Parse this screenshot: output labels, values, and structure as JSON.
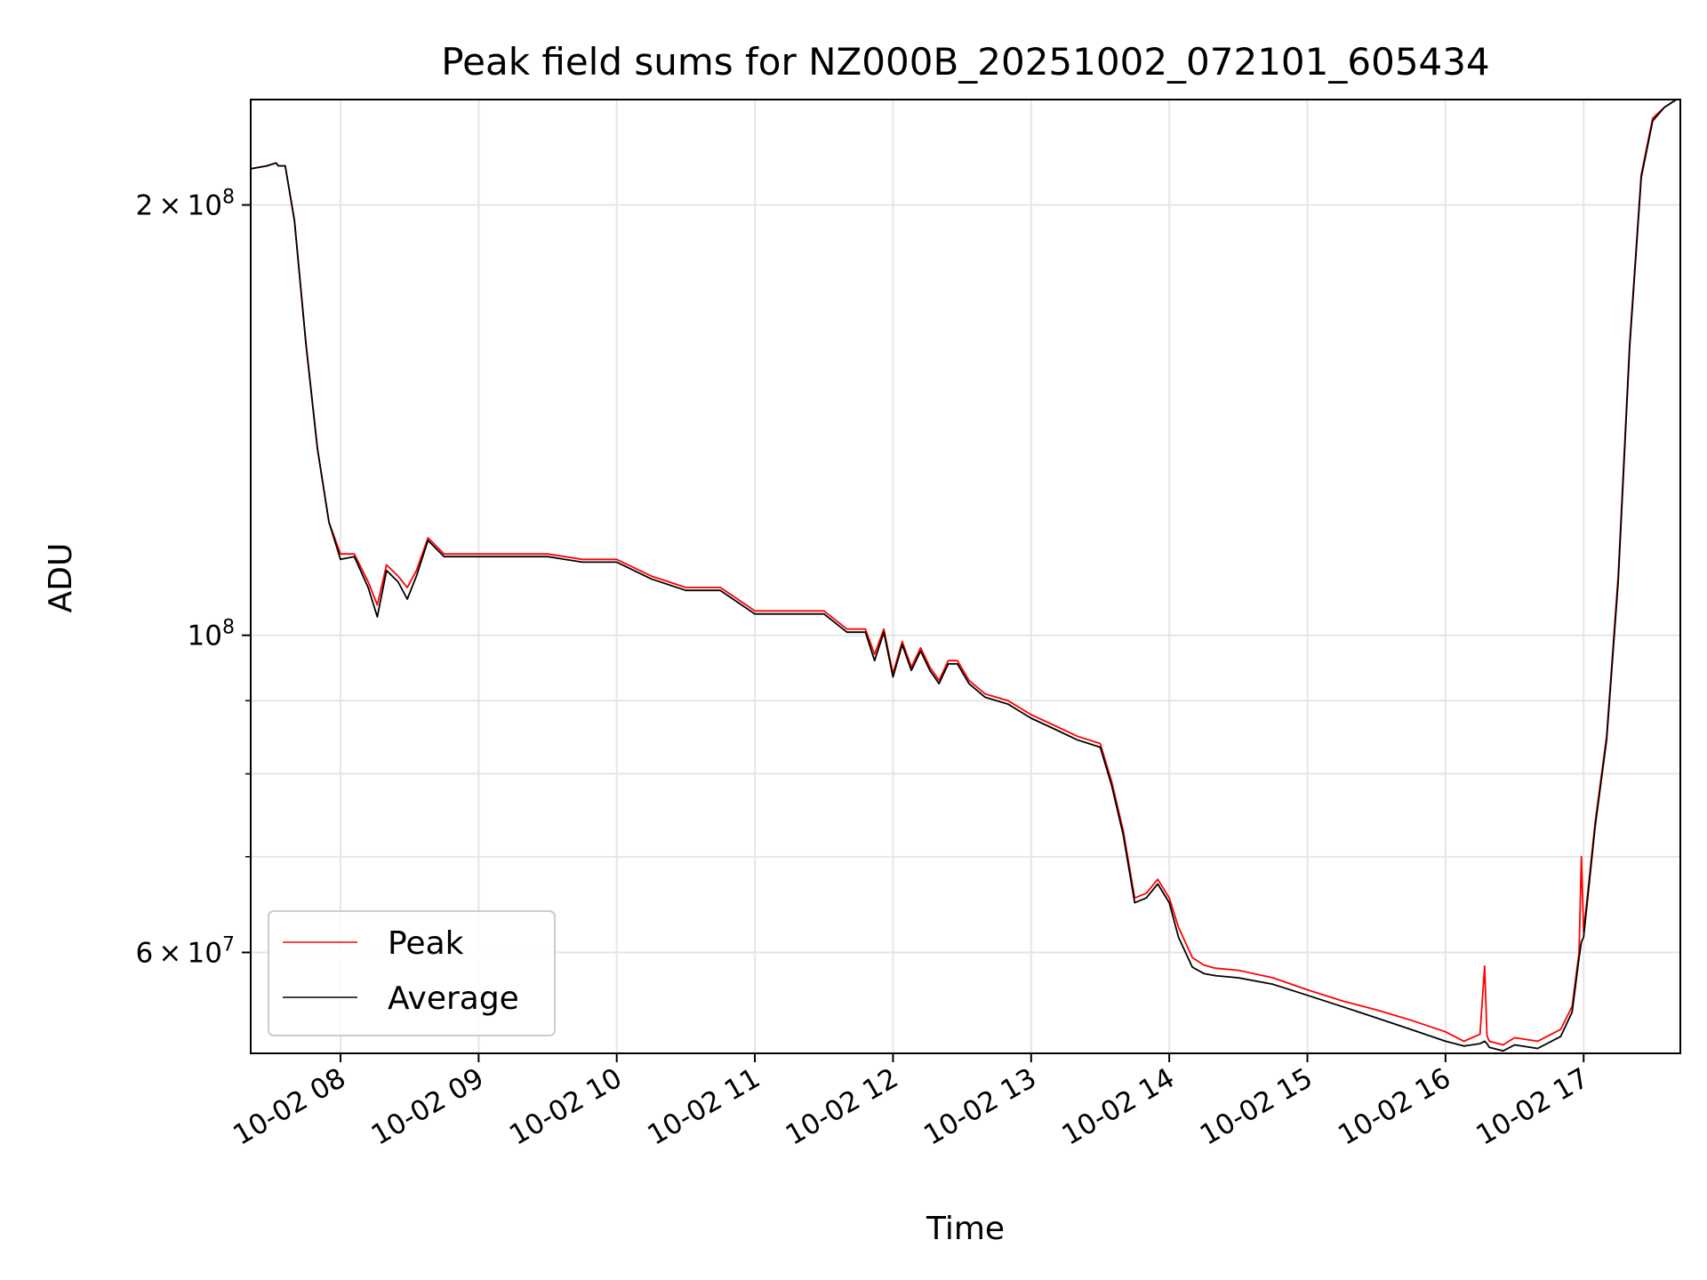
{
  "chart_data": {
    "type": "line",
    "title": "Peak field sums for NZ000B_20251002_072101_605434",
    "xlabel": "Time",
    "ylabel": "ADU",
    "yscale": "log",
    "xlim": [
      "2025-10-02 07:21",
      "2025-10-02 17:42"
    ],
    "ylim": [
      51000000,
      237000000
    ],
    "grid": true,
    "legend_position": "lower-left",
    "x_ticks": [
      {
        "value": "2025-10-02 08:00",
        "label": "10-02 08"
      },
      {
        "value": "2025-10-02 09:00",
        "label": "10-02 09"
      },
      {
        "value": "2025-10-02 10:00",
        "label": "10-02 10"
      },
      {
        "value": "2025-10-02 11:00",
        "label": "10-02 11"
      },
      {
        "value": "2025-10-02 12:00",
        "label": "10-02 12"
      },
      {
        "value": "2025-10-02 13:00",
        "label": "10-02 13"
      },
      {
        "value": "2025-10-02 14:00",
        "label": "10-02 14"
      },
      {
        "value": "2025-10-02 15:00",
        "label": "10-02 15"
      },
      {
        "value": "2025-10-02 16:00",
        "label": "10-02 16"
      },
      {
        "value": "2025-10-02 17:00",
        "label": "10-02 17"
      }
    ],
    "y_major_ticks": [
      {
        "value": 60000000,
        "mantissa": "6",
        "exp": "7"
      },
      {
        "value": 100000000,
        "mantissa": "",
        "exp": "8"
      },
      {
        "value": 200000000,
        "mantissa": "2",
        "exp": "8"
      }
    ],
    "y_minor_ticks": [
      60000000,
      70000000,
      80000000,
      90000000,
      200000000
    ],
    "series": [
      {
        "name": "Peak",
        "color": "#ff0000",
        "x": [
          "2025-10-02 07:21",
          "2025-10-02 07:28",
          "2025-10-02 07:32",
          "2025-10-02 07:33",
          "2025-10-02 07:36",
          "2025-10-02 07:40",
          "2025-10-02 07:45",
          "2025-10-02 07:50",
          "2025-10-02 07:55",
          "2025-10-02 08:00",
          "2025-10-02 08:06",
          "2025-10-02 08:12",
          "2025-10-02 08:16",
          "2025-10-02 08:20",
          "2025-10-02 08:25",
          "2025-10-02 08:29",
          "2025-10-02 08:33",
          "2025-10-02 08:38",
          "2025-10-02 08:45",
          "2025-10-02 08:50",
          "2025-10-02 09:00",
          "2025-10-02 09:15",
          "2025-10-02 09:30",
          "2025-10-02 09:45",
          "2025-10-02 10:00",
          "2025-10-02 10:15",
          "2025-10-02 10:30",
          "2025-10-02 10:45",
          "2025-10-02 11:00",
          "2025-10-02 11:15",
          "2025-10-02 11:30",
          "2025-10-02 11:40",
          "2025-10-02 11:48",
          "2025-10-02 11:52",
          "2025-10-02 11:56",
          "2025-10-02 12:00",
          "2025-10-02 12:04",
          "2025-10-02 12:08",
          "2025-10-02 12:12",
          "2025-10-02 12:16",
          "2025-10-02 12:20",
          "2025-10-02 12:24",
          "2025-10-02 12:28",
          "2025-10-02 12:33",
          "2025-10-02 12:40",
          "2025-10-02 12:50",
          "2025-10-02 13:00",
          "2025-10-02 13:10",
          "2025-10-02 13:20",
          "2025-10-02 13:30",
          "2025-10-02 13:35",
          "2025-10-02 13:40",
          "2025-10-02 13:45",
          "2025-10-02 13:50",
          "2025-10-02 13:55",
          "2025-10-02 14:00",
          "2025-10-02 14:04",
          "2025-10-02 14:10",
          "2025-10-02 14:15",
          "2025-10-02 14:20",
          "2025-10-02 14:30",
          "2025-10-02 14:45",
          "2025-10-02 15:00",
          "2025-10-02 15:15",
          "2025-10-02 15:30",
          "2025-10-02 15:45",
          "2025-10-02 16:00",
          "2025-10-02 16:08",
          "2025-10-02 16:15",
          "2025-10-02 16:17",
          "2025-10-02 16:18",
          "2025-10-02 16:19",
          "2025-10-02 16:25",
          "2025-10-02 16:30",
          "2025-10-02 16:40",
          "2025-10-02 16:50",
          "2025-10-02 16:55",
          "2025-10-02 16:58",
          "2025-10-02 16:59",
          "2025-10-02 17:00",
          "2025-10-02 17:05",
          "2025-10-02 17:10",
          "2025-10-02 17:15",
          "2025-10-02 17:20",
          "2025-10-02 17:25",
          "2025-10-02 17:30",
          "2025-10-02 17:35",
          "2025-10-02 17:42"
        ],
        "y": [
          212000000,
          213000000,
          214000000,
          213000000,
          213000000,
          195000000,
          160000000,
          135000000,
          120000000,
          114000000,
          114000000,
          109000000,
          105000000,
          112000000,
          110000000,
          108000000,
          111000000,
          117000000,
          114000000,
          114000000,
          114000000,
          114000000,
          114000000,
          113000000,
          113000000,
          110000000,
          108000000,
          108000000,
          104000000,
          104000000,
          104000000,
          101000000,
          101000000,
          97000000,
          101000000,
          94000000,
          99000000,
          95000000,
          98000000,
          95000000,
          93000000,
          96000000,
          96000000,
          93000000,
          91000000,
          90000000,
          88000000,
          86500000,
          85000000,
          84000000,
          79000000,
          73000000,
          65500000,
          66000000,
          67500000,
          65500000,
          62500000,
          59500000,
          58800000,
          58500000,
          58300000,
          57600000,
          56500000,
          55500000,
          54700000,
          53800000,
          52800000,
          52000000,
          52600000,
          58700000,
          52500000,
          52000000,
          51700000,
          52300000,
          52000000,
          53000000,
          55000000,
          60000000,
          70000000,
          62000000,
          74000000,
          85000000,
          110000000,
          160000000,
          210000000,
          230000000,
          234000000,
          238000000
        ]
      },
      {
        "name": "Average",
        "color": "#000000",
        "x": [
          "2025-10-02 07:21",
          "2025-10-02 07:28",
          "2025-10-02 07:32",
          "2025-10-02 07:33",
          "2025-10-02 07:36",
          "2025-10-02 07:40",
          "2025-10-02 07:45",
          "2025-10-02 07:50",
          "2025-10-02 07:55",
          "2025-10-02 08:00",
          "2025-10-02 08:06",
          "2025-10-02 08:12",
          "2025-10-02 08:16",
          "2025-10-02 08:20",
          "2025-10-02 08:25",
          "2025-10-02 08:29",
          "2025-10-02 08:33",
          "2025-10-02 08:38",
          "2025-10-02 08:45",
          "2025-10-02 08:50",
          "2025-10-02 09:00",
          "2025-10-02 09:15",
          "2025-10-02 09:30",
          "2025-10-02 09:45",
          "2025-10-02 10:00",
          "2025-10-02 10:15",
          "2025-10-02 10:30",
          "2025-10-02 10:45",
          "2025-10-02 11:00",
          "2025-10-02 11:15",
          "2025-10-02 11:30",
          "2025-10-02 11:40",
          "2025-10-02 11:48",
          "2025-10-02 11:52",
          "2025-10-02 11:56",
          "2025-10-02 12:00",
          "2025-10-02 12:04",
          "2025-10-02 12:08",
          "2025-10-02 12:12",
          "2025-10-02 12:16",
          "2025-10-02 12:20",
          "2025-10-02 12:24",
          "2025-10-02 12:28",
          "2025-10-02 12:33",
          "2025-10-02 12:40",
          "2025-10-02 12:50",
          "2025-10-02 13:00",
          "2025-10-02 13:10",
          "2025-10-02 13:20",
          "2025-10-02 13:30",
          "2025-10-02 13:35",
          "2025-10-02 13:40",
          "2025-10-02 13:45",
          "2025-10-02 13:50",
          "2025-10-02 13:55",
          "2025-10-02 14:00",
          "2025-10-02 14:04",
          "2025-10-02 14:10",
          "2025-10-02 14:15",
          "2025-10-02 14:20",
          "2025-10-02 14:30",
          "2025-10-02 14:45",
          "2025-10-02 15:00",
          "2025-10-02 15:15",
          "2025-10-02 15:30",
          "2025-10-02 15:45",
          "2025-10-02 16:00",
          "2025-10-02 16:08",
          "2025-10-02 16:15",
          "2025-10-02 16:17",
          "2025-10-02 16:18",
          "2025-10-02 16:19",
          "2025-10-02 16:25",
          "2025-10-02 16:30",
          "2025-10-02 16:40",
          "2025-10-02 16:50",
          "2025-10-02 16:55",
          "2025-10-02 16:58",
          "2025-10-02 16:59",
          "2025-10-02 17:00",
          "2025-10-02 17:05",
          "2025-10-02 17:10",
          "2025-10-02 17:15",
          "2025-10-02 17:20",
          "2025-10-02 17:25",
          "2025-10-02 17:30",
          "2025-10-02 17:35",
          "2025-10-02 17:42"
        ],
        "y": [
          212000000,
          213000000,
          214000000,
          213000000,
          213000000,
          195000000,
          160000000,
          135000000,
          120000000,
          113000000,
          113500000,
          108000000,
          103000000,
          111000000,
          109000000,
          106000000,
          110000000,
          116500000,
          113500000,
          113500000,
          113500000,
          113500000,
          113500000,
          112500000,
          112500000,
          109500000,
          107500000,
          107500000,
          103500000,
          103500000,
          103500000,
          100500000,
          100500000,
          96000000,
          100500000,
          93500000,
          98500000,
          94500000,
          97500000,
          94500000,
          92500000,
          95500000,
          95500000,
          92500000,
          90500000,
          89500000,
          87500000,
          86000000,
          84500000,
          83500000,
          78500000,
          72500000,
          65000000,
          65500000,
          67000000,
          65000000,
          61500000,
          58600000,
          58000000,
          57800000,
          57600000,
          57000000,
          56000000,
          55000000,
          54000000,
          53000000,
          52000000,
          51600000,
          51800000,
          52000000,
          51800000,
          51500000,
          51200000,
          51700000,
          51400000,
          52400000,
          54500000,
          59500000,
          61000000,
          61500000,
          73500000,
          84500000,
          109000000,
          159000000,
          209000000,
          229000000,
          234000000,
          238000000
        ]
      }
    ]
  }
}
